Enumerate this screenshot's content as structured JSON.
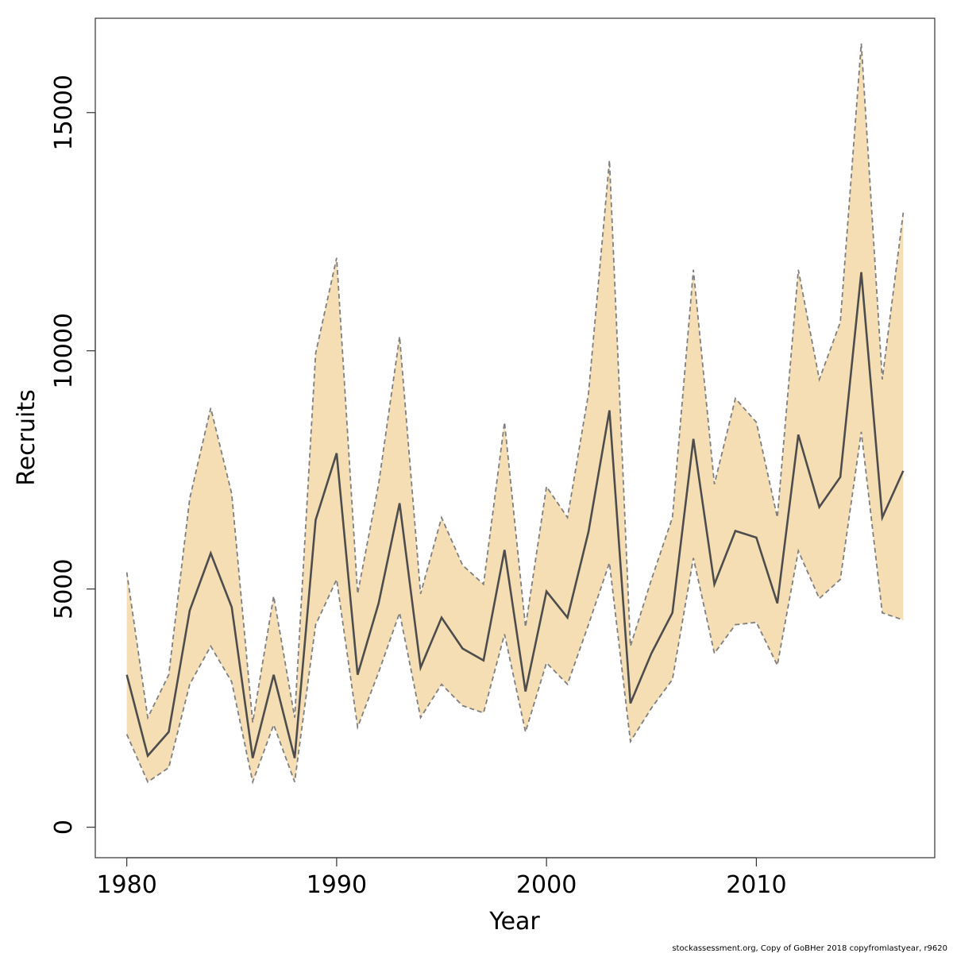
{
  "chart_data": {
    "type": "area",
    "xlabel": "Year",
    "ylabel": "Recruits",
    "xlim": [
      1978.5,
      2018.5
    ],
    "ylim": [
      -640,
      16980
    ],
    "x_ticks": [
      1980,
      1990,
      2000,
      2010
    ],
    "y_ticks": [
      0,
      5000,
      10000,
      15000
    ],
    "grid": false,
    "legend": "none",
    "colors": {
      "band_fill": "#f5deb3",
      "band_border": "#7f7f7f",
      "line": "#4d4d4d",
      "frame": "#333333"
    },
    "x": [
      1980,
      1981,
      1982,
      1983,
      1984,
      1985,
      1986,
      1987,
      1988,
      1989,
      1990,
      1991,
      1992,
      1993,
      1994,
      1995,
      1996,
      1997,
      1998,
      1999,
      2000,
      2001,
      2002,
      2003,
      2004,
      2005,
      2006,
      2007,
      2008,
      2009,
      2010,
      2011,
      2012,
      2013,
      2014,
      2015,
      2016,
      2017
    ],
    "series": [
      {
        "role": "estimate",
        "values": [
          3200,
          1500,
          2000,
          4550,
          5750,
          4620,
          1450,
          3200,
          1450,
          6450,
          7850,
          3200,
          4700,
          6800,
          3350,
          4400,
          3750,
          3500,
          5820,
          2850,
          4950,
          4400,
          6200,
          8750,
          2600,
          3650,
          4500,
          8150,
          5100,
          6220,
          6080,
          4700,
          8240,
          6720,
          7350,
          11650,
          6500,
          7480
        ]
      },
      {
        "role": "upper",
        "values": [
          5350,
          2300,
          3200,
          6900,
          8800,
          7000,
          2200,
          4850,
          2300,
          9950,
          11950,
          4900,
          7200,
          10300,
          4900,
          6500,
          5500,
          5100,
          8500,
          4200,
          7150,
          6500,
          9100,
          14000,
          3800,
          5200,
          6500,
          11700,
          7200,
          9000,
          8500,
          6500,
          11700,
          9400,
          10600,
          16450,
          9400,
          12900
        ]
      },
      {
        "role": "lower",
        "values": [
          1950,
          950,
          1250,
          3000,
          3800,
          3050,
          950,
          2150,
          950,
          4250,
          5200,
          2100,
          3250,
          4500,
          2300,
          3000,
          2550,
          2400,
          4050,
          2000,
          3450,
          3000,
          4250,
          5550,
          1800,
          2500,
          3100,
          5650,
          3650,
          4250,
          4300,
          3400,
          5800,
          4800,
          5200,
          8300,
          4500,
          4350
        ]
      }
    ]
  },
  "credit": "stockassessment.org, Copy  of  GoBHer  2018  copyfromlastyear, r9620"
}
